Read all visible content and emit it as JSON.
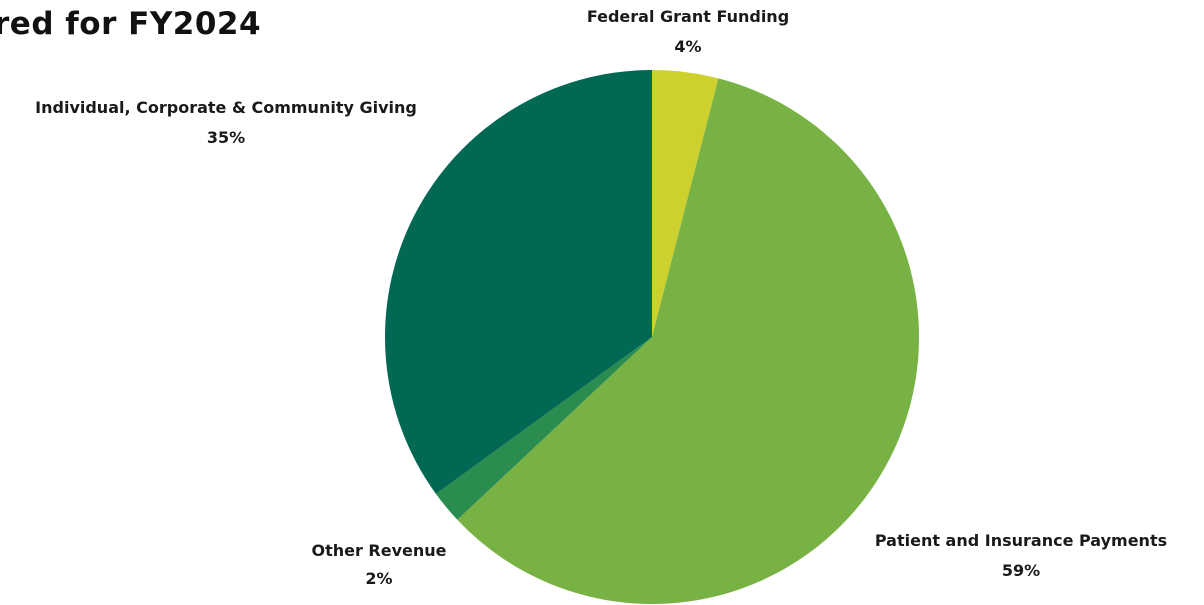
{
  "title": "red for FY2024",
  "chart_data": {
    "type": "pie",
    "slices": [
      {
        "label": "Federal Grant Funding",
        "value": 4,
        "pct_label": "4%",
        "color": "#cdd12e"
      },
      {
        "label": "Patient and Insurance Payments",
        "value": 59,
        "pct_label": "59%",
        "color": "#78b244"
      },
      {
        "label": "Other Revenue",
        "value": 2,
        "pct_label": "2%",
        "color": "#2b8c50"
      },
      {
        "label": "Individual, Corporate & Community Giving",
        "value": 35,
        "pct_label": "35%",
        "color": "#006853"
      }
    ],
    "start_angle": "12 o'clock",
    "direction": "clockwise",
    "legend": "none (data labels beside slices)"
  }
}
